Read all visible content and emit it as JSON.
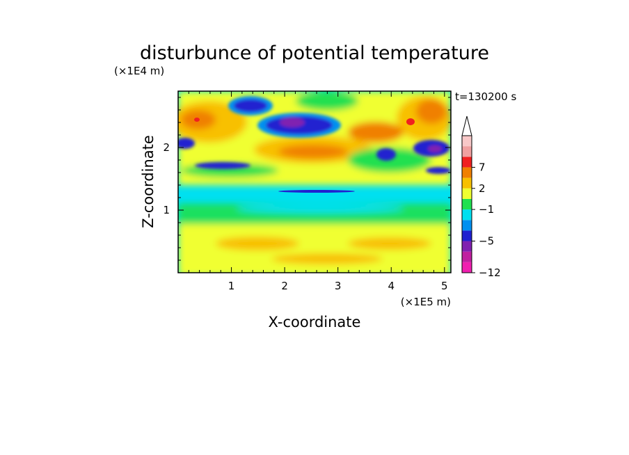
{
  "chart_data": {
    "type": "heatmap",
    "title": "disturbunce of potential temperature",
    "xlabel": "X-coordinate",
    "ylabel": "Z-coordinate",
    "x_unit_label": "(×1E5 m)",
    "y_unit_label": "(×1E4 m)",
    "time_label": "t=130200 s",
    "xlim": [
      0,
      5.12
    ],
    "ylim": [
      0,
      2.9
    ],
    "x_ticks": [
      1,
      2,
      3,
      4,
      5
    ],
    "y_ticks": [
      1,
      2
    ],
    "x_tick_labels": [
      "1",
      "2",
      "3",
      "4",
      "5"
    ],
    "y_tick_labels": [
      "1",
      "2"
    ],
    "colorbar": {
      "tick_labels": [
        "7",
        "2",
        "−1",
        "−5",
        "−12"
      ],
      "tick_values": [
        7,
        2,
        -1,
        -5,
        -12
      ],
      "extend": "max",
      "levels_colors": [
        "#f020b0",
        "#c020a0",
        "#8020b0",
        "#2020d0",
        "#0090f0",
        "#00e0f0",
        "#20e050",
        "#f0ff30",
        "#f8c000",
        "#f08000",
        "#f02020",
        "#f0a0a0",
        "#f8c8c8"
      ]
    },
    "colors": {
      "background": "#00e0f0",
      "axis": "#000000"
    }
  }
}
